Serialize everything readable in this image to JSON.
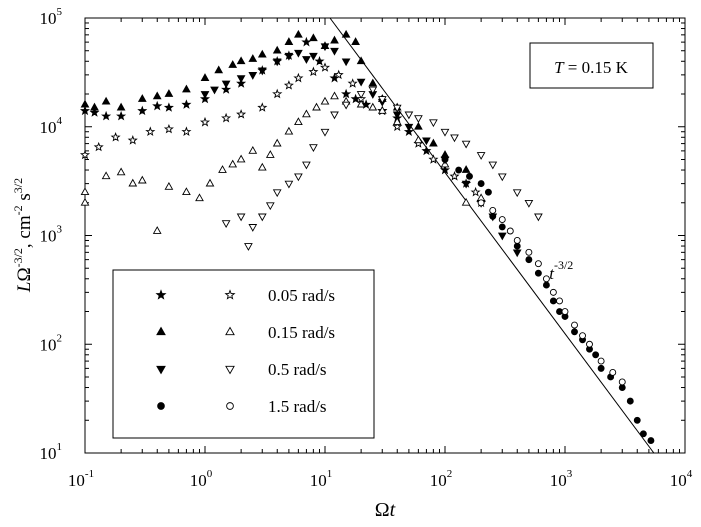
{
  "chart_data": {
    "type": "scatter",
    "xscale": "log",
    "yscale": "log",
    "xlim": [
      0.1,
      10000
    ],
    "ylim": [
      10,
      100000
    ],
    "xlabel": "Ωt",
    "ylabel": "LΩ^-3/2, cm^-2 s^3/2",
    "annotation_box": "T = 0.15 K",
    "x_ticks": [
      {
        "value": 0.1,
        "base": "10",
        "exp": "-1"
      },
      {
        "value": 1,
        "base": "10",
        "exp": "0"
      },
      {
        "value": 10,
        "base": "10",
        "exp": "1"
      },
      {
        "value": 100,
        "base": "10",
        "exp": "2"
      },
      {
        "value": 1000,
        "base": "10",
        "exp": "3"
      },
      {
        "value": 10000,
        "base": "10",
        "exp": "4"
      }
    ],
    "y_ticks": [
      {
        "value": 10,
        "base": "10",
        "exp": "1"
      },
      {
        "value": 100,
        "base": "10",
        "exp": "2"
      },
      {
        "value": 1000,
        "base": "10",
        "exp": "3"
      },
      {
        "value": 10000,
        "base": "10",
        "exp": "4"
      },
      {
        "value": 100000,
        "base": "10",
        "exp": "5"
      }
    ],
    "fit_line": {
      "label_base": "t",
      "label_exp": "-3/2",
      "label_at": [
        330,
        400
      ],
      "points": [
        [
          11,
          100000
        ],
        [
          5500,
          10
        ]
      ]
    },
    "legend_labels": [
      "0.05 rad/s",
      "0.15 rad/s",
      "0.5 rad/s",
      "1.5 rad/s"
    ],
    "series": [
      {
        "name": "0.05 rad/s filled",
        "marker": "star",
        "fill": "filled",
        "points": [
          [
            0.1,
            14000
          ],
          [
            0.12,
            13500
          ],
          [
            0.15,
            12500
          ],
          [
            0.2,
            12500
          ],
          [
            0.3,
            14000
          ],
          [
            0.4,
            15500
          ],
          [
            0.5,
            15000
          ],
          [
            0.7,
            16000
          ],
          [
            1.0,
            18000
          ],
          [
            1.5,
            22000
          ],
          [
            2.0,
            25000
          ],
          [
            3.0,
            33000
          ],
          [
            4.0,
            40000
          ],
          [
            5.0,
            45000
          ],
          [
            7.0,
            60000
          ],
          [
            9.0,
            40000
          ],
          [
            12.0,
            28000
          ],
          [
            15.0,
            20000
          ],
          [
            18.0,
            18000
          ],
          [
            22.0,
            16000
          ],
          [
            30.0,
            14000
          ],
          [
            40.0,
            12000
          ],
          [
            50.0,
            9000
          ],
          [
            70.0,
            6000
          ],
          [
            100.0,
            4000
          ],
          [
            150.0,
            3000
          ],
          [
            200.0,
            2000
          ]
        ]
      },
      {
        "name": "0.05 rad/s open",
        "marker": "star",
        "fill": "open",
        "points": [
          [
            0.1,
            5500
          ],
          [
            0.13,
            6500
          ],
          [
            0.18,
            8000
          ],
          [
            0.25,
            7500
          ],
          [
            0.35,
            9000
          ],
          [
            0.5,
            9500
          ],
          [
            0.7,
            9000
          ],
          [
            1.0,
            11000
          ],
          [
            1.5,
            12000
          ],
          [
            2.0,
            13000
          ],
          [
            3.0,
            15000
          ],
          [
            4.0,
            20000
          ],
          [
            5.0,
            24000
          ],
          [
            6.0,
            28000
          ],
          [
            8.0,
            32000
          ],
          [
            10.0,
            35000
          ],
          [
            13.0,
            30000
          ],
          [
            17.0,
            25000
          ],
          [
            20.0,
            18000
          ],
          [
            30.0,
            14000
          ],
          [
            40.0,
            10000
          ],
          [
            60.0,
            7000
          ],
          [
            80.0,
            5000
          ],
          [
            120.0,
            3500
          ],
          [
            180.0,
            2500
          ]
        ]
      },
      {
        "name": "0.15 rad/s filled",
        "marker": "triangle-up",
        "fill": "filled",
        "points": [
          [
            0.1,
            16000
          ],
          [
            0.12,
            15000
          ],
          [
            0.15,
            17000
          ],
          [
            0.2,
            15000
          ],
          [
            0.3,
            18000
          ],
          [
            0.4,
            19000
          ],
          [
            0.5,
            20000
          ],
          [
            0.7,
            22000
          ],
          [
            1.0,
            28000
          ],
          [
            1.3,
            33000
          ],
          [
            1.7,
            37000
          ],
          [
            2.0,
            40000
          ],
          [
            2.5,
            42000
          ],
          [
            3.0,
            46000
          ],
          [
            4.0,
            50000
          ],
          [
            5.0,
            60000
          ],
          [
            6.0,
            70000
          ],
          [
            8.0,
            65000
          ],
          [
            10.0,
            55000
          ],
          [
            12.0,
            62000
          ],
          [
            15.0,
            70000
          ],
          [
            18.0,
            60000
          ],
          [
            20.0,
            40000
          ],
          [
            25.0,
            25000
          ],
          [
            30.0,
            18000
          ],
          [
            40.0,
            15000
          ],
          [
            60.0,
            10000
          ],
          [
            80.0,
            7000
          ],
          [
            100.0,
            5500
          ],
          [
            150.0,
            4000
          ]
        ]
      },
      {
        "name": "0.15 rad/s open",
        "marker": "triangle-up",
        "fill": "open",
        "points": [
          [
            0.1,
            2500
          ],
          [
            0.1,
            2000
          ],
          [
            0.15,
            3500
          ],
          [
            0.2,
            3800
          ],
          [
            0.25,
            3000
          ],
          [
            0.3,
            3200
          ],
          [
            0.4,
            1100
          ],
          [
            0.5,
            2800
          ],
          [
            0.7,
            2500
          ],
          [
            0.9,
            2200
          ],
          [
            1.1,
            3000
          ],
          [
            1.4,
            4000
          ],
          [
            1.7,
            4500
          ],
          [
            2.0,
            5000
          ],
          [
            2.5,
            6000
          ],
          [
            3.0,
            4200
          ],
          [
            3.5,
            5500
          ],
          [
            4.0,
            7000
          ],
          [
            5.0,
            9000
          ],
          [
            6.0,
            11000
          ],
          [
            7.0,
            13000
          ],
          [
            8.5,
            15000
          ],
          [
            10.0,
            17000
          ],
          [
            12.0,
            19000
          ],
          [
            15.0,
            17000
          ],
          [
            20.0,
            16000
          ],
          [
            25.0,
            15000
          ],
          [
            30.0,
            14000
          ],
          [
            40.0,
            11000
          ],
          [
            60.0,
            7500
          ],
          [
            100.0,
            4500
          ],
          [
            150.0,
            2000
          ],
          [
            200.0,
            2200
          ]
        ]
      },
      {
        "name": "0.5 rad/s filled",
        "marker": "triangle-down",
        "fill": "filled",
        "points": [
          [
            1.0,
            20000
          ],
          [
            1.2,
            22000
          ],
          [
            1.5,
            25000
          ],
          [
            2.0,
            28000
          ],
          [
            2.5,
            30000
          ],
          [
            3.0,
            33000
          ],
          [
            4.0,
            40000
          ],
          [
            5.0,
            45000
          ],
          [
            6.0,
            48000
          ],
          [
            7.0,
            42000
          ],
          [
            8.0,
            45000
          ],
          [
            10.0,
            55000
          ],
          [
            12.0,
            50000
          ],
          [
            15.0,
            40000
          ],
          [
            20.0,
            26000
          ],
          [
            25.0,
            20000
          ],
          [
            30.0,
            17000
          ],
          [
            40.0,
            13000
          ],
          [
            50.0,
            10000
          ],
          [
            70.0,
            7500
          ],
          [
            100.0,
            5000
          ],
          [
            150.0,
            3000
          ],
          [
            200.0,
            2000
          ],
          [
            250.0,
            1500
          ],
          [
            300.0,
            1000
          ],
          [
            400.0,
            700
          ]
        ]
      },
      {
        "name": "0.5 rad/s open",
        "marker": "triangle-down",
        "fill": "open",
        "points": [
          [
            1.5,
            1300
          ],
          [
            2.0,
            1500
          ],
          [
            2.5,
            1200
          ],
          [
            3.0,
            1500
          ],
          [
            2.3,
            800
          ],
          [
            3.5,
            1900
          ],
          [
            4.0,
            2500
          ],
          [
            5.0,
            3000
          ],
          [
            6.0,
            3500
          ],
          [
            7.0,
            4500
          ],
          [
            8.0,
            6500
          ],
          [
            10.0,
            9000
          ],
          [
            12.0,
            13000
          ],
          [
            15.0,
            16000
          ],
          [
            20.0,
            20000
          ],
          [
            25.0,
            22000
          ],
          [
            30.0,
            18000
          ],
          [
            40.0,
            15000
          ],
          [
            50.0,
            13000
          ],
          [
            60.0,
            12000
          ],
          [
            80.0,
            11000
          ],
          [
            100.0,
            9000
          ],
          [
            120.0,
            8000
          ],
          [
            150.0,
            7000
          ],
          [
            200.0,
            5500
          ],
          [
            250.0,
            4500
          ],
          [
            300.0,
            3500
          ],
          [
            400.0,
            2500
          ],
          [
            500.0,
            2000
          ],
          [
            600.0,
            1500
          ]
        ]
      },
      {
        "name": "1.5 rad/s filled",
        "marker": "circle",
        "fill": "filled",
        "points": [
          [
            100,
            5000
          ],
          [
            130,
            4000
          ],
          [
            160,
            3500
          ],
          [
            200,
            3000
          ],
          [
            230,
            2500
          ],
          [
            250,
            1500
          ],
          [
            300,
            1200
          ],
          [
            400,
            800
          ],
          [
            500,
            600
          ],
          [
            600,
            450
          ],
          [
            700,
            350
          ],
          [
            800,
            250
          ],
          [
            900,
            200
          ],
          [
            1000,
            180
          ],
          [
            1200,
            130
          ],
          [
            1400,
            110
          ],
          [
            1600,
            90
          ],
          [
            1800,
            80
          ],
          [
            2000,
            60
          ],
          [
            2400,
            50
          ],
          [
            3000,
            40
          ],
          [
            3500,
            30
          ],
          [
            4000,
            20
          ],
          [
            4500,
            15
          ],
          [
            5200,
            13
          ]
        ]
      },
      {
        "name": "1.5 rad/s open",
        "marker": "circle",
        "fill": "open",
        "points": [
          [
            200,
            2000
          ],
          [
            250,
            1700
          ],
          [
            300,
            1400
          ],
          [
            350,
            1100
          ],
          [
            400,
            900
          ],
          [
            500,
            700
          ],
          [
            600,
            550
          ],
          [
            700,
            400
          ],
          [
            800,
            300
          ],
          [
            900,
            250
          ],
          [
            1000,
            200
          ],
          [
            1200,
            150
          ],
          [
            1400,
            120
          ],
          [
            1600,
            100
          ],
          [
            2000,
            70
          ],
          [
            2500,
            55
          ],
          [
            3000,
            45
          ]
        ]
      }
    ]
  }
}
